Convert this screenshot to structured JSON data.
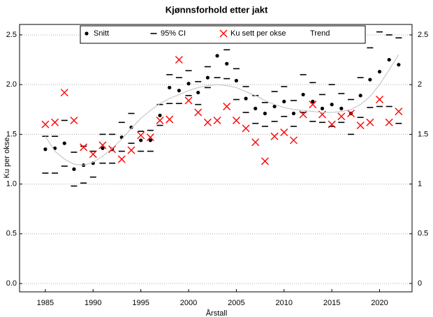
{
  "chart_data": {
    "type": "scatter",
    "title": "Kjønnsforhold etter jakt",
    "xlabel": "Årstall",
    "ylabel": "Ku per okse",
    "x": [
      1985,
      1986,
      1987,
      1988,
      1989,
      1990,
      1991,
      1992,
      1993,
      1994,
      1995,
      1996,
      1997,
      1998,
      1999,
      2000,
      2001,
      2002,
      2003,
      2004,
      2005,
      2006,
      2007,
      2008,
      2009,
      2010,
      2011,
      2012,
      2013,
      2014,
      2015,
      2016,
      2017,
      2018,
      2019,
      2020,
      2021,
      2022
    ],
    "series": [
      {
        "name": "Snitt",
        "marker": "dot",
        "color": "#000000",
        "values": [
          1.35,
          1.36,
          1.41,
          1.15,
          1.19,
          1.21,
          1.36,
          1.35,
          1.47,
          1.57,
          1.44,
          1.44,
          1.69,
          1.97,
          1.94,
          2.01,
          1.92,
          2.07,
          2.29,
          2.21,
          2.04,
          1.86,
          1.76,
          1.71,
          1.78,
          1.83,
          1.71,
          1.9,
          1.83,
          1.76,
          1.8,
          1.76,
          1.71,
          1.89,
          2.05,
          2.13,
          2.25,
          2.2
        ]
      },
      {
        "name": "95% CI",
        "marker": "dash",
        "color": "#000000",
        "high": [
          1.48,
          1.48,
          1.64,
          1.32,
          1.38,
          1.33,
          1.5,
          1.5,
          1.62,
          1.71,
          1.53,
          1.54,
          1.8,
          2.1,
          2.07,
          2.14,
          2.03,
          2.18,
          2.5,
          2.35,
          2.16,
          1.98,
          1.89,
          1.82,
          1.93,
          1.98,
          1.84,
          2.1,
          2.02,
          1.9,
          2.0,
          1.91,
          1.85,
          2.07,
          2.37,
          2.53,
          2.5,
          2.47
        ],
        "low": [
          1.11,
          1.11,
          1.18,
          0.98,
          1.01,
          1.07,
          1.21,
          1.21,
          1.33,
          1.41,
          1.33,
          1.33,
          1.59,
          1.81,
          1.81,
          1.89,
          1.8,
          1.97,
          2.07,
          2.06,
          1.85,
          1.72,
          1.61,
          1.58,
          1.63,
          1.68,
          1.58,
          1.72,
          1.63,
          1.62,
          1.58,
          1.62,
          1.5,
          1.67,
          1.77,
          1.78,
          1.78,
          1.61
        ]
      },
      {
        "name": "Ku sett per okse",
        "marker": "x",
        "color": "#ff0000",
        "values": [
          1.6,
          1.62,
          1.92,
          1.64,
          1.37,
          1.3,
          1.39,
          1.35,
          1.25,
          1.34,
          1.49,
          1.47,
          1.64,
          1.65,
          2.25,
          1.84,
          1.72,
          1.62,
          1.64,
          1.78,
          1.64,
          1.56,
          1.42,
          1.23,
          1.48,
          1.52,
          1.44,
          1.7,
          1.8,
          1.7,
          1.6,
          1.68,
          1.71,
          1.59,
          1.62,
          1.85,
          1.62,
          1.73
        ]
      },
      {
        "name": "Trend",
        "marker": "line",
        "color": "#c8c8c8",
        "values": [
          1.48,
          1.33,
          1.25,
          1.2,
          1.19,
          1.22,
          1.28,
          1.36,
          1.45,
          1.56,
          1.66,
          1.74,
          1.81,
          1.86,
          1.9,
          1.94,
          1.97,
          1.99,
          2.0,
          1.99,
          1.97,
          1.93,
          1.89,
          1.84,
          1.8,
          1.77,
          1.75,
          1.74,
          1.73,
          1.72,
          1.72,
          1.73,
          1.75,
          1.8,
          1.88,
          2.0,
          2.15,
          2.3
        ]
      }
    ],
    "xlim": [
      1982.3,
      2023.4
    ],
    "xticks": [
      1985,
      1990,
      1995,
      2000,
      2005,
      2010,
      2015,
      2020
    ],
    "ylim": [
      -0.084,
      2.605
    ],
    "yticks": [
      {
        "value": 0,
        "label": "0.0"
      },
      {
        "value": 0.5,
        "label": "0.5"
      },
      {
        "value": 1,
        "label": "1.0"
      },
      {
        "value": 1.5,
        "label": "1.5"
      },
      {
        "value": 2,
        "label": "2.0"
      },
      {
        "value": 2.5,
        "label": "2.5"
      }
    ],
    "y2lim": [
      -0.084,
      2.605
    ],
    "y2ticks": [
      0,
      0.5,
      1,
      1.5,
      2,
      2.5
    ],
    "grid": true,
    "legend": "top"
  }
}
